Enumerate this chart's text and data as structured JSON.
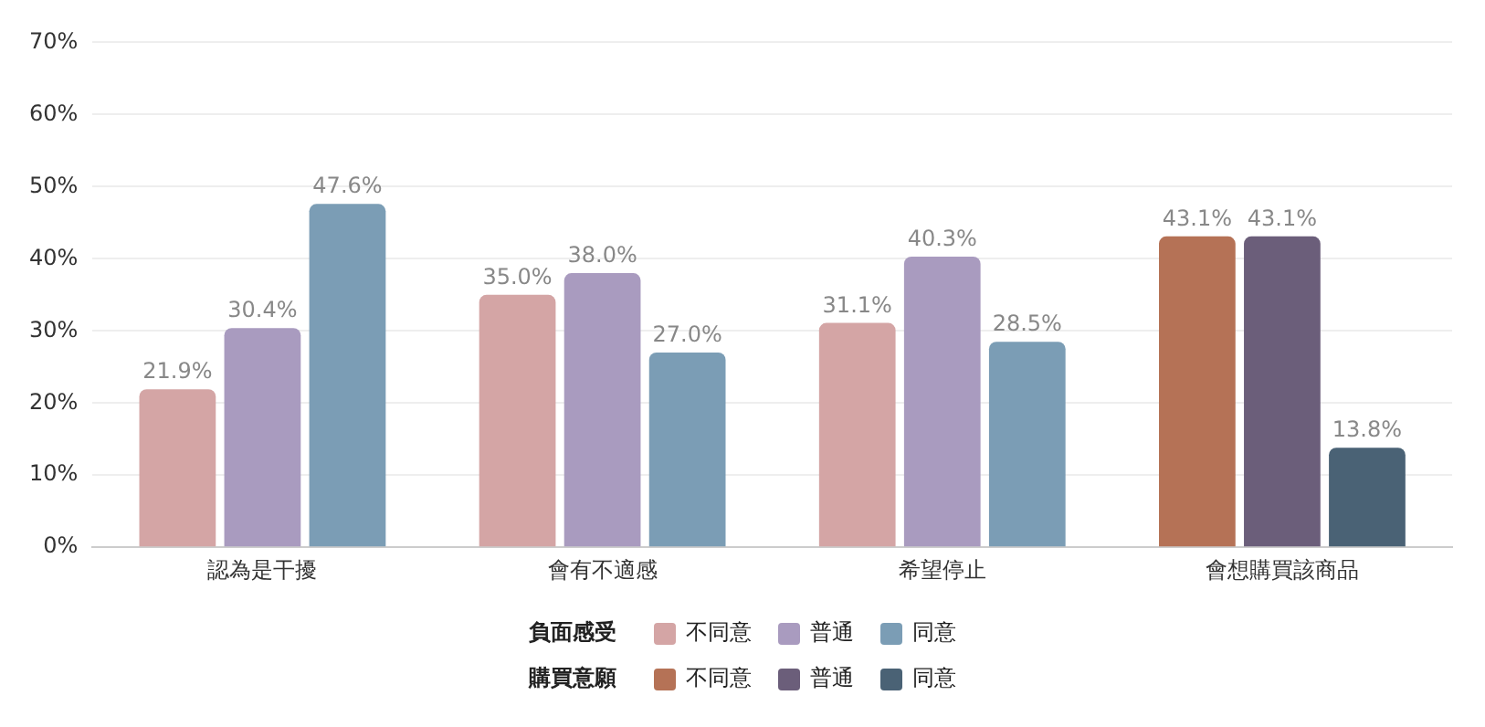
{
  "chart_data": {
    "type": "bar",
    "categories": [
      "認為是干擾",
      "會有不適感",
      "希望停止",
      "會想購買該商品"
    ],
    "series": [
      {
        "name": "不同意",
        "color": "#d4a5a5",
        "values": [
          21.9,
          35.0,
          31.1,
          null
        ],
        "value_labels": [
          "21.9%",
          "35.0%",
          "31.1%",
          null
        ]
      },
      {
        "name": "普通",
        "color": "#a99bbf",
        "values": [
          30.4,
          38.0,
          40.3,
          null
        ],
        "value_labels": [
          "30.4%",
          "38.0%",
          "40.3%",
          null
        ]
      },
      {
        "name": "同意",
        "color": "#7b9db5",
        "values": [
          47.6,
          27.0,
          28.5,
          null
        ],
        "value_labels": [
          "47.6%",
          "27.0%",
          "28.5%",
          null
        ]
      },
      {
        "name": "不同意",
        "color": "#b57256",
        "values": [
          null,
          null,
          null,
          43.1
        ],
        "value_labels": [
          null,
          null,
          null,
          "43.1%"
        ]
      },
      {
        "name": "普通",
        "color": "#6b5e7a",
        "values": [
          null,
          null,
          null,
          43.1
        ],
        "value_labels": [
          null,
          null,
          null,
          "43.1%"
        ]
      },
      {
        "name": "同意",
        "color": "#4a6275",
        "values": [
          null,
          null,
          null,
          13.8
        ],
        "value_labels": [
          null,
          null,
          null,
          "13.8%"
        ]
      }
    ],
    "legend_title": [
      "負面感受",
      "購買意願"
    ],
    "ylim": [
      0,
      70
    ],
    "yticks": [
      {
        "value": 0,
        "label": "0%"
      },
      {
        "value": 10,
        "label": "10%"
      },
      {
        "value": 20,
        "label": "20%"
      },
      {
        "value": 30,
        "label": "30%"
      },
      {
        "value": 40,
        "label": "40%"
      },
      {
        "value": 50,
        "label": "50%"
      },
      {
        "value": 60,
        "label": "60%"
      },
      {
        "value": 70,
        "label": "70%"
      }
    ],
    "grid": "y",
    "legend": "bottom"
  }
}
